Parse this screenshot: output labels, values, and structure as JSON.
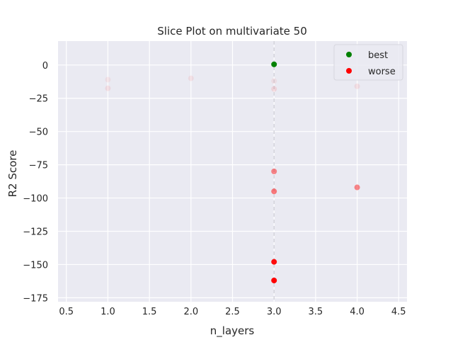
{
  "chart_data": {
    "type": "scatter",
    "title": "Slice Plot on multivariate 50",
    "xlabel": "n_layers",
    "ylabel": "R2 Score",
    "xlim": [
      0.4,
      4.6
    ],
    "ylim": [
      -178,
      18
    ],
    "xticks": [
      0.5,
      1.0,
      1.5,
      2.0,
      2.5,
      3.0,
      3.5,
      4.0,
      4.5
    ],
    "xtick_labels": [
      "0.5",
      "1.0",
      "1.5",
      "2.0",
      "2.5",
      "3.0",
      "3.5",
      "4.0",
      "4.5"
    ],
    "yticks": [
      0,
      -25,
      -50,
      -75,
      -100,
      -125,
      -150,
      -175
    ],
    "ytick_labels": [
      "0",
      "−25",
      "−50",
      "−75",
      "−100",
      "−125",
      "−150",
      "−175"
    ],
    "grid": true,
    "legend_position": "top-right",
    "best_x_line": 3.0,
    "series": [
      {
        "name": "best",
        "color": "#008000",
        "points": [
          {
            "x": 3.0,
            "y": 0.5,
            "opacity": 1.0
          }
        ]
      },
      {
        "name": "worse",
        "color": "#ff0000",
        "points": [
          {
            "x": 1.0,
            "y": -11,
            "opacity": 0.06
          },
          {
            "x": 1.0,
            "y": -17.5,
            "opacity": 0.08
          },
          {
            "x": 2.0,
            "y": -10,
            "opacity": 0.07
          },
          {
            "x": 3.0,
            "y": -12,
            "opacity": 0.06
          },
          {
            "x": 3.0,
            "y": -18,
            "opacity": 0.1
          },
          {
            "x": 4.0,
            "y": -16,
            "opacity": 0.08
          },
          {
            "x": 3.0,
            "y": -80,
            "opacity": 0.45
          },
          {
            "x": 3.0,
            "y": -95,
            "opacity": 0.5
          },
          {
            "x": 4.0,
            "y": -92,
            "opacity": 0.45
          },
          {
            "x": 3.0,
            "y": -148,
            "opacity": 0.95
          },
          {
            "x": 3.0,
            "y": -162,
            "opacity": 1.0
          }
        ]
      }
    ]
  }
}
